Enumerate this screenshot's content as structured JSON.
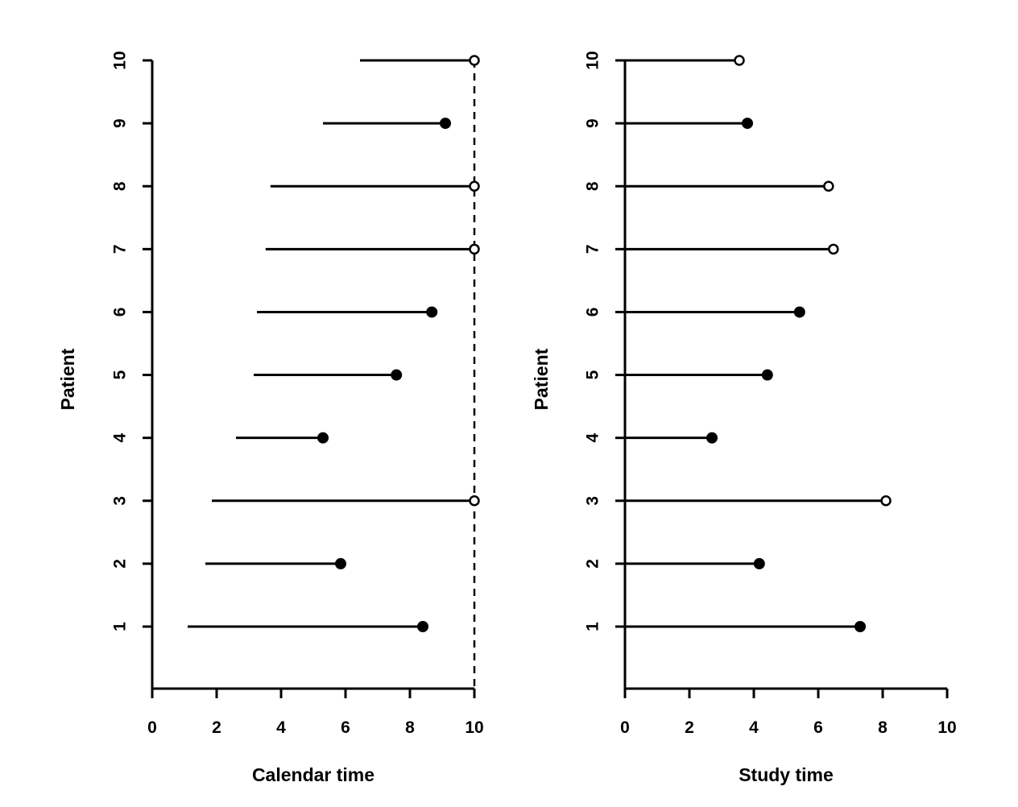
{
  "chart_data": [
    {
      "type": "line",
      "xlabel": "Calendar time",
      "ylabel": "Patient",
      "xlim": [
        0,
        10
      ],
      "x_ticks": [
        "0",
        "2",
        "4",
        "6",
        "8",
        "10"
      ],
      "y_ticks": [
        "1",
        "2",
        "3",
        "4",
        "5",
        "6",
        "7",
        "8",
        "9",
        "10"
      ],
      "reference_line": {
        "x": 10,
        "style": "dashed"
      },
      "patients": [
        {
          "patient": 1,
          "start": 1.1,
          "end": 8.4,
          "event": true
        },
        {
          "patient": 2,
          "start": 1.65,
          "end": 5.85,
          "event": true
        },
        {
          "patient": 3,
          "start": 1.85,
          "end": 10.0,
          "event": false
        },
        {
          "patient": 4,
          "start": 2.6,
          "end": 5.3,
          "event": true
        },
        {
          "patient": 5,
          "start": 3.15,
          "end": 7.58,
          "event": true
        },
        {
          "patient": 6,
          "start": 3.25,
          "end": 8.68,
          "event": true
        },
        {
          "patient": 7,
          "start": 3.52,
          "end": 10.0,
          "event": false
        },
        {
          "patient": 8,
          "start": 3.67,
          "end": 10.0,
          "event": false
        },
        {
          "patient": 9,
          "start": 5.3,
          "end": 9.1,
          "event": true
        },
        {
          "patient": 10,
          "start": 6.45,
          "end": 10.0,
          "event": false
        }
      ]
    },
    {
      "type": "line",
      "xlabel": "Study time",
      "ylabel": "Patient",
      "xlim": [
        0,
        10
      ],
      "x_ticks": [
        "0",
        "2",
        "4",
        "6",
        "8",
        "10"
      ],
      "y_ticks": [
        "1",
        "2",
        "3",
        "4",
        "5",
        "6",
        "7",
        "8",
        "9",
        "10"
      ],
      "patients": [
        {
          "patient": 1,
          "start": 0,
          "end": 7.3,
          "event": true
        },
        {
          "patient": 2,
          "start": 0,
          "end": 4.17,
          "event": true
        },
        {
          "patient": 3,
          "start": 0,
          "end": 8.1,
          "event": false
        },
        {
          "patient": 4,
          "start": 0,
          "end": 2.7,
          "event": true
        },
        {
          "patient": 5,
          "start": 0,
          "end": 4.42,
          "event": true
        },
        {
          "patient": 6,
          "start": 0,
          "end": 5.42,
          "event": true
        },
        {
          "patient": 7,
          "start": 0,
          "end": 6.47,
          "event": false
        },
        {
          "patient": 8,
          "start": 0,
          "end": 6.32,
          "event": false
        },
        {
          "patient": 9,
          "start": 0,
          "end": 3.8,
          "event": true
        },
        {
          "patient": 10,
          "start": 0,
          "end": 3.55,
          "event": false
        }
      ]
    }
  ]
}
